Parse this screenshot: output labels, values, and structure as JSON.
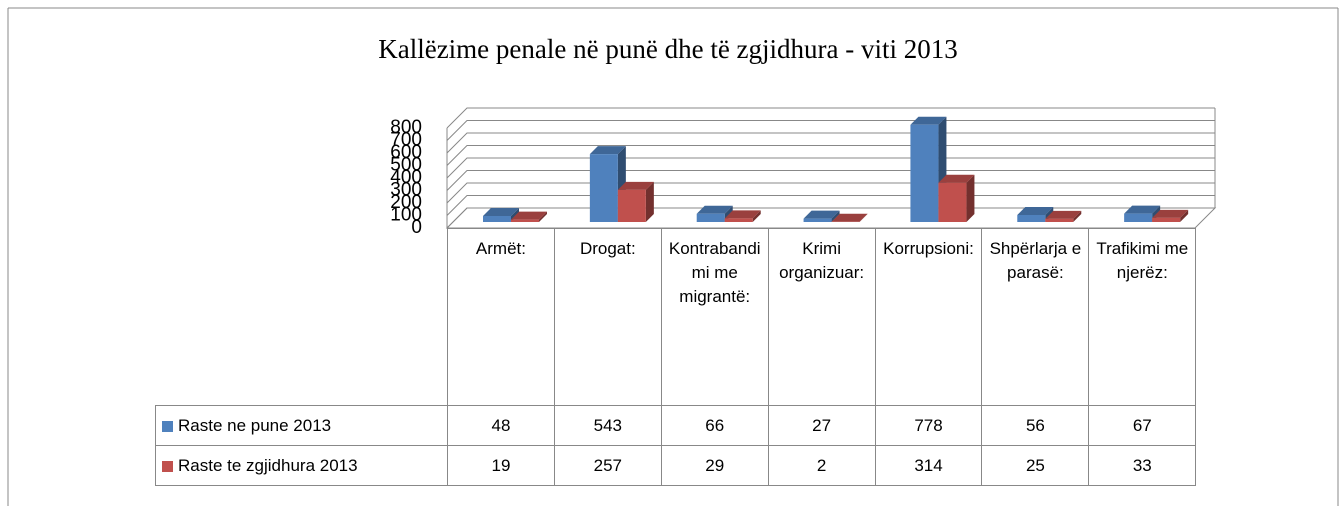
{
  "chart_data": {
    "type": "bar3d",
    "title": "Kallëzime penale në punë dhe të zgjidhura - viti 2013",
    "categories": [
      "Armët:",
      "Drogat:",
      "Kontrabandimi me migrantë:",
      "Krimi organizuar:",
      "Korrupsioni:",
      "Shpërlarja e parasë:",
      "Trafikimi me njerëz:"
    ],
    "series": [
      {
        "name": "Raste ne pune 2013",
        "color": "#4f81bd",
        "values": [
          48,
          543,
          66,
          27,
          778,
          56,
          67
        ]
      },
      {
        "name": "Raste te zgjidhura 2013",
        "color": "#c0504d",
        "values": [
          19,
          257,
          29,
          2,
          314,
          25,
          33
        ]
      }
    ],
    "ylim": [
      0,
      800
    ],
    "yticks": [
      0,
      100,
      200,
      300,
      400,
      500,
      600,
      700,
      800
    ],
    "grid": true
  }
}
